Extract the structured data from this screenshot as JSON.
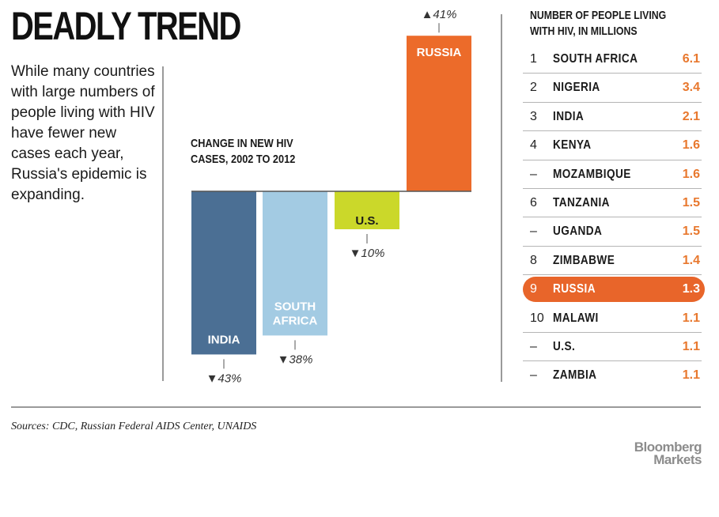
{
  "title": "DEADLY TREND",
  "intro": "While many countries with large numbers of people living with HIV have fewer new cases each year, Russia's epidemic is expanding.",
  "colors": {
    "india": "#4b6f94",
    "south_africa": "#a3cbe3",
    "us": "#cbd82a",
    "russia": "#ec6b2a",
    "accent": "#e8782e"
  },
  "chart_data": {
    "type": "bar",
    "title": "CHANGE IN NEW HIV CASES, 2002 TO 2012",
    "categories": [
      "INDIA",
      "SOUTH AFRICA",
      "U.S.",
      "RUSSIA"
    ],
    "values": [
      -43,
      -38,
      -10,
      41
    ],
    "data_labels": [
      "▼43%",
      "▼38%",
      "▼10%",
      "▲41%"
    ],
    "ylim": [
      -45,
      45
    ],
    "grid": false
  },
  "ranking": {
    "header": "NUMBER OF PEOPLE LIVING WITH HIV, IN MILLIONS",
    "rows": [
      {
        "rank": "1",
        "country": "SOUTH AFRICA",
        "value": "6.1"
      },
      {
        "rank": "2",
        "country": "NIGERIA",
        "value": "3.4"
      },
      {
        "rank": "3",
        "country": "INDIA",
        "value": "2.1"
      },
      {
        "rank": "4",
        "country": "KENYA",
        "value": "1.6"
      },
      {
        "rank": "–",
        "country": "MOZAMBIQUE",
        "value": "1.6"
      },
      {
        "rank": "6",
        "country": "TANZANIA",
        "value": "1.5"
      },
      {
        "rank": "–",
        "country": "UGANDA",
        "value": "1.5"
      },
      {
        "rank": "8",
        "country": "ZIMBABWE",
        "value": "1.4"
      },
      {
        "rank": "9",
        "country": "RUSSIA",
        "value": "1.3",
        "highlight": true
      },
      {
        "rank": "10",
        "country": "MALAWI",
        "value": "1.1"
      },
      {
        "rank": "–",
        "country": "U.S.",
        "value": "1.1"
      },
      {
        "rank": "–",
        "country": "ZAMBIA",
        "value": "1.1"
      }
    ]
  },
  "sources": "Sources: CDC, Russian Federal AIDS Center, UNAIDS",
  "logo": {
    "line1": "Bloomberg",
    "line2": "Markets"
  }
}
